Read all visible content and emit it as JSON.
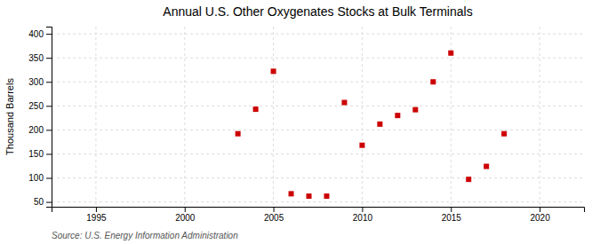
{
  "chart_data": {
    "type": "scatter",
    "title": "Annual U.S. Other Oxygenates Stocks at Bulk Terminals",
    "ylabel": "Thousand Barrels",
    "annotation": "Source: U.S. Energy Information Administration",
    "x": [
      2003,
      2004,
      2005,
      2006,
      2007,
      2008,
      2009,
      2010,
      2011,
      2012,
      2013,
      2014,
      2015,
      2016,
      2017,
      2018
    ],
    "values": [
      192,
      243,
      322,
      67,
      62,
      62,
      257,
      168,
      212,
      230,
      242,
      300,
      360,
      97,
      124,
      192
    ],
    "color": "#cc0000",
    "marker": "square",
    "xlim": [
      1992.5,
      2022.5
    ],
    "ylim": [
      40,
      415
    ],
    "xticks": [
      1995,
      2000,
      2005,
      2010,
      2015,
      2020
    ],
    "yticks": [
      50,
      100,
      150,
      200,
      250,
      300,
      350,
      400
    ],
    "grid": true
  }
}
